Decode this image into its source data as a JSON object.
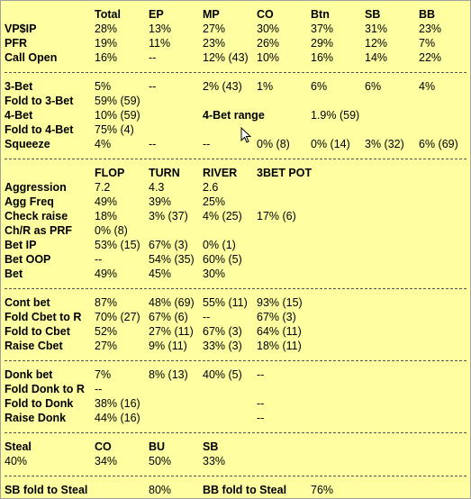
{
  "sec1": {
    "header": [
      "Total",
      "EP",
      "MP",
      "CO",
      "Btn",
      "SB",
      "BB"
    ],
    "rows": [
      {
        "label": "VP$IP",
        "v": [
          "28%",
          "13%",
          "27%",
          "30%",
          "37%",
          "31%",
          "23%"
        ]
      },
      {
        "label": "PFR",
        "v": [
          "19%",
          "11%",
          "23%",
          "26%",
          "29%",
          "12%",
          "7%"
        ]
      },
      {
        "label": "Call Open",
        "v": [
          "16%",
          "--",
          "12%  (43)",
          "10%",
          "16%",
          "14%",
          "22%"
        ]
      }
    ]
  },
  "sec2": {
    "r3bet": {
      "label": "3-Bet",
      "v": [
        "5%",
        "--",
        "2%  (43)",
        "1%",
        "6%",
        "6%",
        "4%"
      ]
    },
    "f3bet": {
      "label": "Fold to 3-Bet",
      "v": "59%  (59)"
    },
    "r4bet": {
      "label": "4-Bet",
      "v": "10%  (59)",
      "range_label": "4-Bet range",
      "range_value": "1.9% (59)"
    },
    "f4bet": {
      "label": "Fold to 4-Bet",
      "v": "75%  (4)"
    },
    "squeeze": {
      "label": "Squeeze",
      "v": [
        "4%",
        "--",
        "--",
        "0%  (8)",
        "0%  (14)",
        "3%  (32)",
        "6%  (69)"
      ]
    }
  },
  "sec3": {
    "header": [
      "FLOP",
      "TURN",
      "RIVER",
      "3BET POT"
    ],
    "rows": [
      {
        "label": "Aggression",
        "v": [
          "7.2",
          "4.3",
          "2.6"
        ]
      },
      {
        "label": "Agg Freq",
        "v": [
          "49%",
          "39%",
          "25%"
        ]
      },
      {
        "label": "Check raise",
        "v": [
          "18%",
          "3%  (37)",
          "4%  (25)",
          "17%  (6)"
        ]
      },
      {
        "label": "Ch/R as PRF",
        "v": [
          "0%  (8)"
        ]
      },
      {
        "label": "Bet IP",
        "v": [
          "53%  (15)",
          "67%  (3)",
          "0%  (1)"
        ]
      },
      {
        "label": "Bet OOP",
        "v": [
          "--",
          "54%  (35)",
          "60%  (5)"
        ]
      },
      {
        "label": "Bet",
        "v": [
          "49%",
          "45%",
          "30%"
        ]
      }
    ]
  },
  "sec4": {
    "rows": [
      {
        "label": "Cont bet",
        "v": [
          "87%",
          "48%  (69)",
          "55%  (11)",
          "93%  (15)"
        ]
      },
      {
        "label": "Fold Cbet to R",
        "v": [
          "70%  (27)",
          "67%  (6)",
          "--",
          "67%  (3)"
        ]
      },
      {
        "label": "Fold to Cbet",
        "v": [
          "52%",
          "27%  (11)",
          "67%  (3)",
          "64%  (11)"
        ]
      },
      {
        "label": "Raise Cbet",
        "v": [
          "27%",
          "9%  (11)",
          "33%  (3)",
          "18%  (11)"
        ]
      }
    ]
  },
  "sec5": {
    "rows": [
      {
        "label": "Donk bet",
        "v": [
          "7%",
          "8%  (13)",
          "40%  (5)",
          "--"
        ]
      },
      {
        "label": "Fold Donk to R",
        "v": [
          "--"
        ]
      },
      {
        "label": "Fold to Donk",
        "v": [
          "38%  (16)",
          "",
          "",
          "--"
        ]
      },
      {
        "label": "Raise Donk",
        "v": [
          "44%  (16)",
          "",
          "",
          "--"
        ]
      }
    ]
  },
  "sec6": {
    "header": [
      "Steal",
      "CO",
      "BU",
      "SB"
    ],
    "values": [
      "40%",
      "34%",
      "50%",
      "33%"
    ]
  },
  "sec7": {
    "sb_label": "SB fold to Steal",
    "sb_value": "80%",
    "bb_label": "BB fold to Steal",
    "bb_value": "76%"
  },
  "colors": {
    "background": "#ffffa2",
    "text": "#000000",
    "border": "#a0a0a0"
  },
  "icons": [
    "mouse-cursor-icon"
  ]
}
